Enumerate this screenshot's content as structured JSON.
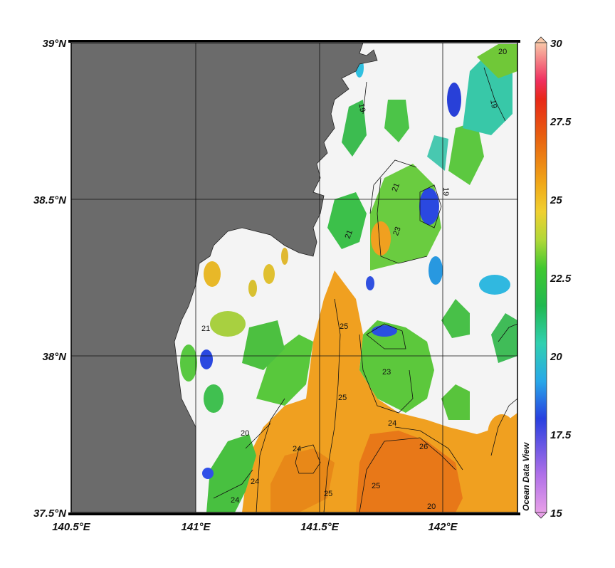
{
  "map": {
    "lat_labels": [
      "39°N",
      "38.5°N",
      "38°N",
      "37.5°N"
    ],
    "lon_labels": [
      "140.5°E",
      "141°E",
      "141.5°E",
      "142°E"
    ],
    "lat_values": [
      39.0,
      38.5,
      38.0,
      37.5
    ],
    "lon_values": [
      140.5,
      141.0,
      141.5,
      142.0
    ],
    "lon_range": [
      140.5,
      142.3
    ],
    "lat_range": [
      37.5,
      39.0
    ],
    "land_color": "#6b6b6b",
    "no_data_color": "#f4f4f4",
    "contour_labels": [
      "20",
      "19",
      "19",
      "21",
      "23",
      "21",
      "19",
      "25",
      "24",
      "23",
      "25",
      "24",
      "25",
      "26",
      "24",
      "25",
      "21",
      "20",
      "24",
      "20"
    ]
  },
  "colorbar": {
    "ticks": [
      "30",
      "27.5",
      "25",
      "22.5",
      "20",
      "17.5",
      "15"
    ],
    "tick_values": [
      30,
      27.5,
      25,
      22.5,
      20,
      17.5,
      15
    ],
    "range": [
      15,
      30
    ],
    "title": "Ocean Data View",
    "colors": [
      "#e08be0",
      "#b05ee0",
      "#3a4fe0",
      "#2aa0e8",
      "#30d0c0",
      "#22b04a",
      "#3ac83a",
      "#c8d840",
      "#f0c020",
      "#f0a020",
      "#e87010",
      "#e83010",
      "#f01010",
      "#f8c0a0"
    ]
  }
}
